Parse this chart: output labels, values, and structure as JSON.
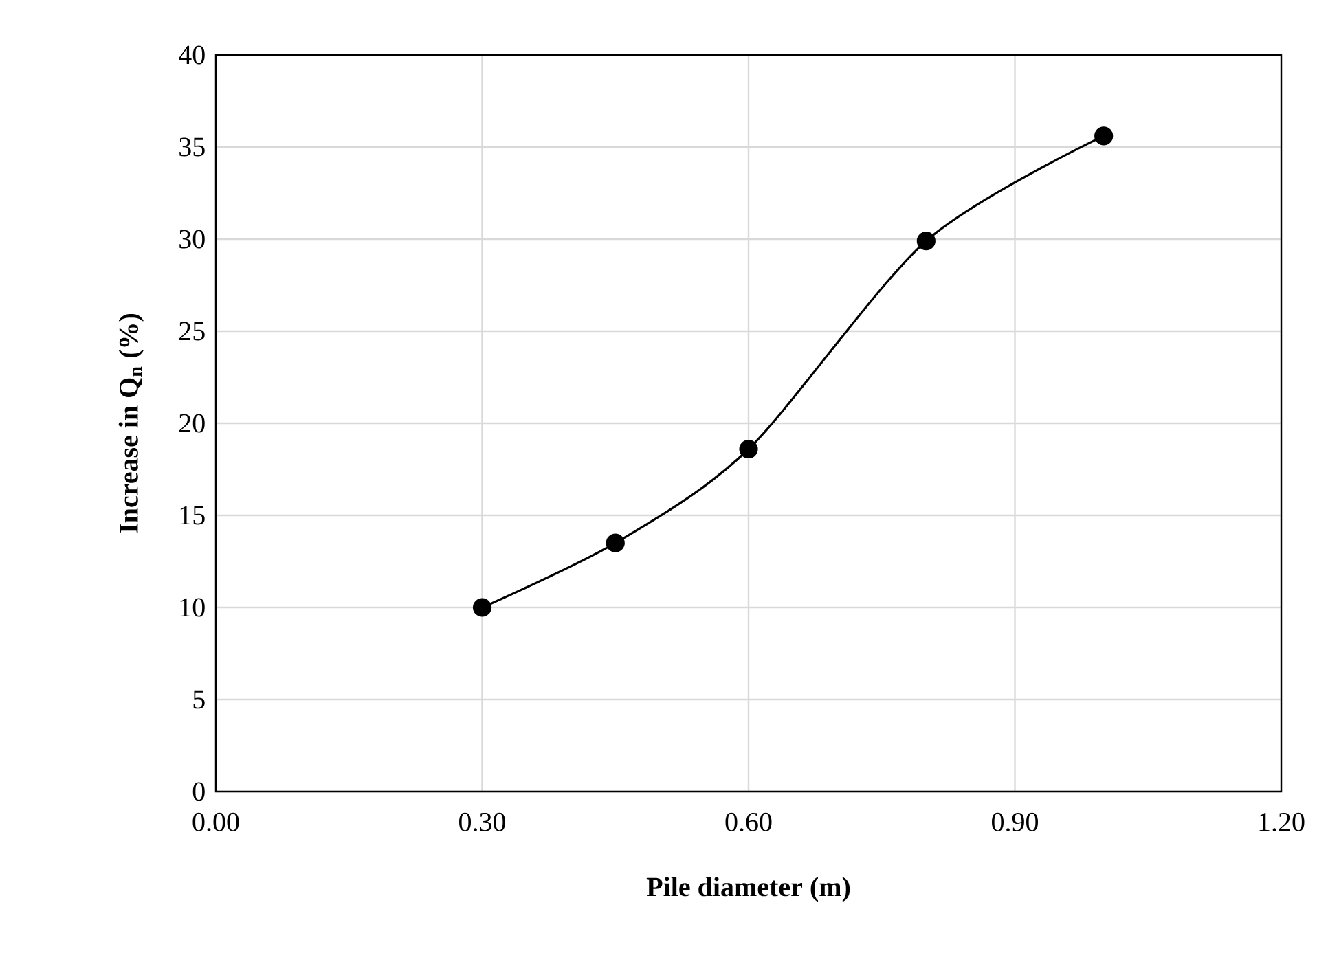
{
  "chart_data": {
    "type": "line",
    "xlabel": "Pile diameter (m)",
    "ylabel": "Increase in Q$_{n}$ (%)",
    "x": [
      0.3,
      0.45,
      0.6,
      0.8,
      1.0
    ],
    "series": [
      {
        "color": "#000000",
        "values": [
          10.0,
          13.5,
          18.6,
          29.9,
          35.6
        ]
      }
    ],
    "xlim": [
      0,
      1.2
    ],
    "ylim": [
      0,
      40
    ],
    "xticks": [
      {
        "value": 0,
        "label": "0.00"
      },
      {
        "value": 0.3,
        "label": "0.30"
      },
      {
        "value": 0.6,
        "label": "0.60"
      },
      {
        "value": 0.9,
        "label": "0.90"
      },
      {
        "value": 1.2,
        "label": "1.20"
      }
    ],
    "yticks": [
      0,
      5,
      10,
      15,
      20,
      25,
      30,
      35,
      40
    ],
    "grid": true,
    "marker": "circle",
    "line_style": "solid"
  }
}
